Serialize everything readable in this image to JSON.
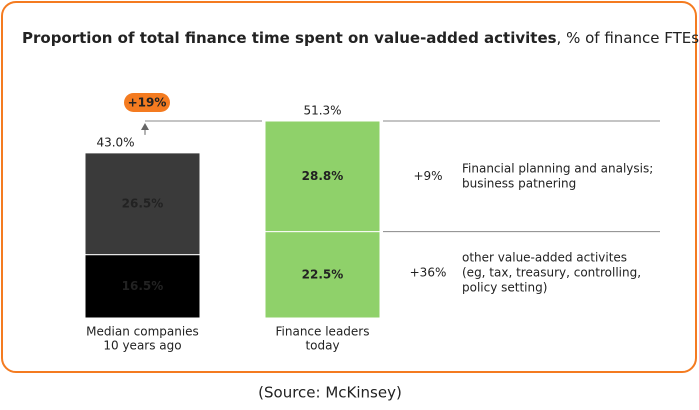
{
  "chart_data": {
    "type": "stacked_bar",
    "title": "Proportion of total finance time spent on value-added activites",
    "subtitle": ", % of finance FTEs",
    "categories": [
      [
        "Median companies",
        "10 years ago"
      ],
      [
        "Finance leaders",
        "today"
      ]
    ],
    "series": [
      {
        "colors": [
          "#000000",
          "#8fd16a"
        ],
        "values": [
          16.5,
          22.5
        ],
        "value_labels": [
          "16.5%",
          "22.5%"
        ]
      },
      {
        "colors": [
          "#3a3a3a",
          "#8fd16a"
        ],
        "values": [
          26.5,
          28.8
        ],
        "value_labels": [
          "26.5%",
          "28.8%"
        ]
      }
    ],
    "totals": {
      "values": [
        43.0,
        51.3
      ],
      "value_labels": [
        "43.0%",
        "51.3%"
      ]
    },
    "change_badge": "+19%",
    "annotations": [
      {
        "change": "+9%",
        "lines": [
          "Financial planning and analysis;",
          "business patnering"
        ]
      },
      {
        "change": "+36%",
        "lines": [
          "other value-added activites",
          "(eg, tax, treasury, controlling,",
          "policy setting)"
        ]
      }
    ],
    "source": "(Source: McKinsey)"
  }
}
